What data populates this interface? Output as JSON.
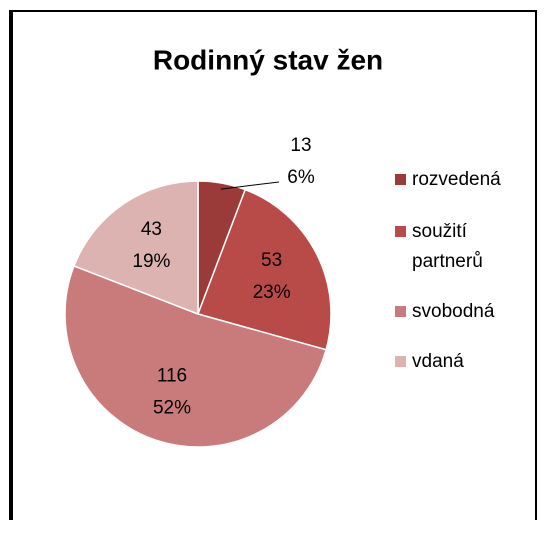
{
  "chart_data": {
    "type": "pie",
    "title": "Rodinný stav žen",
    "categories": [
      "rozvedená",
      "soužití partnerů",
      "svobodná",
      "vdaná"
    ],
    "values": [
      13,
      53,
      116,
      43
    ],
    "percent_labels": [
      "6%",
      "23%",
      "52%",
      "19%"
    ],
    "colors": [
      "#9a3b39",
      "#b84a48",
      "#c87b7a",
      "#ddb3b2"
    ],
    "legend": "right"
  }
}
